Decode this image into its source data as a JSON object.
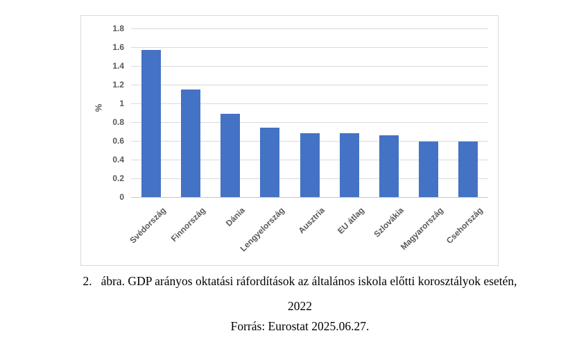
{
  "chart_data": {
    "type": "bar",
    "categories": [
      "Svédország",
      "Finnország",
      "Dánia",
      "Lengyelország",
      "Ausztria",
      "EU átlag",
      "Szlovákia",
      "Magyarország",
      "Csehország"
    ],
    "values": [
      1.57,
      1.15,
      0.89,
      0.74,
      0.68,
      0.68,
      0.66,
      0.59,
      0.59
    ],
    "title": "",
    "xlabel": "",
    "ylabel": "%",
    "ylim": [
      0,
      1.8
    ],
    "ytick_step": 0.2,
    "ytick_labels": [
      "0",
      "0.2",
      "0.4",
      "0.6",
      "0.8",
      "1",
      "1.2",
      "1.4",
      "1.6",
      "1.8"
    ],
    "grid": true,
    "legend": "none",
    "bar_color": "#4472C4",
    "gridline_color": "#d9d9d9",
    "tick_label_color": "#595959",
    "frame_border_color": "#d9d9d9"
  },
  "caption": {
    "number": "2.",
    "line1": "ábra. GDP arányos oktatási ráfordítások az általános iskola előtti korosztályok esetén,",
    "line2": "2022",
    "line3": "Forrás: Eurostat 2025.06.27."
  }
}
